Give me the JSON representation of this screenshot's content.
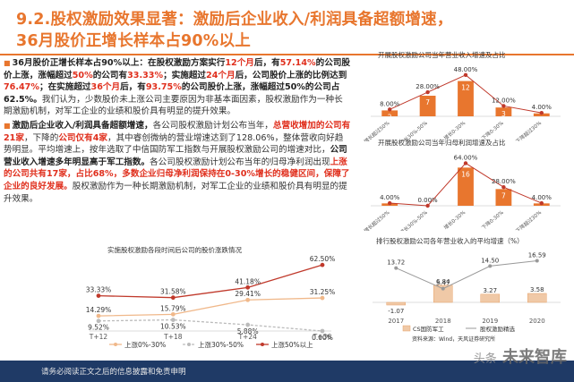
{
  "header": {
    "title_line1": "9.2.股权激励效果显著：激励后企业收入/利润具备超额增速，",
    "title_line2": "36月股价正增长样本占90%以上"
  },
  "paragraph1": {
    "s1": "36月股价正增长样本占90%以上：",
    "s2": "在股权激励方案实行",
    "s3": "12个月",
    "s4": "后，有",
    "s5": "57.14%",
    "s6": "的公司股价上涨，涨幅超过",
    "s7": "50%",
    "s8": "的公司有",
    "s9": "33.33%",
    "s10": "；实施超过",
    "s11": "24个月",
    "s12": "后，公司股价上涨的比例达到",
    "s13": "76.47%",
    "s14": "；",
    "s15": "在实施超过",
    "s16": "36个月",
    "s17": "后，有",
    "s18": "93.75%",
    "s19": "的公司股价上涨，涨幅超过50%的公司占62.5%。",
    "s20": "我们认为，少数股价未上涨公司主要原因为非基本面因素，股权激励作为一种长期激励机制，对军工企业的业绩和股价具有明显的提升效果。"
  },
  "paragraph2": {
    "s1": "激励后企业收入/利润具备超额增速，",
    "s2": "各公司股权激励计划公布当年，",
    "s3": "总营收增加的公司有21家",
    "s4": "，下降的",
    "s5": "公司仅有4家",
    "s6": "，其中睿创微纳的营业增速达到了128.06%，整体营收向好趋势明显。平均增速上，按年选取了中信国防军工指数与开展股权激励公司的增速对比，",
    "s7": "公司营业收入增速多年明显高于军工指数。",
    "s8": "各公司股权激励计划公布当年的归母净利润出现",
    "s9": "上涨的公司共有17家，占比68%，多数企业归母净利润保持在0-30%增长的稳健区间，保障了企业的良好发展。",
    "s10": "股权激励作为一种长期激励机制，对军工企业的业绩和股价具有明显的提升效果。"
  },
  "chart_revenue": {
    "title": "开展股权激励公司当年营业收入增速及占比",
    "categories": [
      "增长超过50%",
      "增长30%-50%",
      "增长0-30%",
      "下降0-30%",
      "下降超过30%"
    ],
    "counts": [
      2,
      7,
      12,
      3,
      1
    ],
    "shares": [
      "8.00%",
      "28.00%",
      "48.00%",
      "12.00%",
      "4.00%"
    ]
  },
  "chart_profit": {
    "title": "开展股权激励公司当年归母利润增速及占比",
    "categories": [
      "增长超过50%",
      "增长30%-50%",
      "增长0-30%",
      "下降0-30%",
      "下降超过30%"
    ],
    "counts": [
      1,
      0,
      16,
      7,
      1
    ],
    "shares": [
      "4.00%",
      "0.00%",
      "64.00%",
      "28.00%",
      "4.00%"
    ]
  },
  "chart_avg": {
    "title": "排行股权激励公司各年营业收入的平均增速（%）",
    "years": [
      "2017",
      "2018",
      "2019",
      "2020"
    ],
    "cs_values": [
      -1.07,
      6.84,
      3.27,
      3.58
    ],
    "inc_values": [
      13.72,
      5.47,
      14.5,
      16.59
    ],
    "cs_labels": [
      "-1.07",
      "6.84",
      "3.27",
      "3.58"
    ],
    "inc_labels": [
      "13.72",
      "5.47",
      "14.50",
      "16.59"
    ],
    "legend_cs": "CS国防军工",
    "legend_inc": "股权激励精选",
    "source": "资料来源：Wind，天风证券研究所"
  },
  "chart_price": {
    "title": "实施股权激励各段时间后公司的股价涨跌情况",
    "periods": [
      "T+12",
      "T+18",
      "T+24",
      "T+36"
    ],
    "series": [
      {
        "name": "上涨0%-30%",
        "values": [
          14.29,
          15.79,
          29.41,
          31.25
        ],
        "labels": [
          "14.29%",
          "15.79%",
          "29.41%",
          "31.25%"
        ]
      },
      {
        "name": "上涨30%-50%",
        "values": [
          9.52,
          10.53,
          5.88,
          0.0
        ],
        "labels": [
          "9.52%",
          "10.53%",
          "5.88%",
          "0.00%"
        ]
      },
      {
        "name": "上涨50%以上",
        "values": [
          33.33,
          31.58,
          41.18,
          62.5
        ],
        "labels": [
          "33.33%",
          "31.58%",
          "41.18%",
          "62.50%"
        ]
      }
    ]
  },
  "footer": {
    "notice": "请务必阅读正文之后的信息披露和免责申明",
    "watermark_main": "未来智库",
    "watermark_prefix": "头条"
  },
  "colors": {
    "accent": "#e8762e",
    "bar": "#e8762e",
    "line": "#c0392b",
    "grey": "#999999"
  }
}
